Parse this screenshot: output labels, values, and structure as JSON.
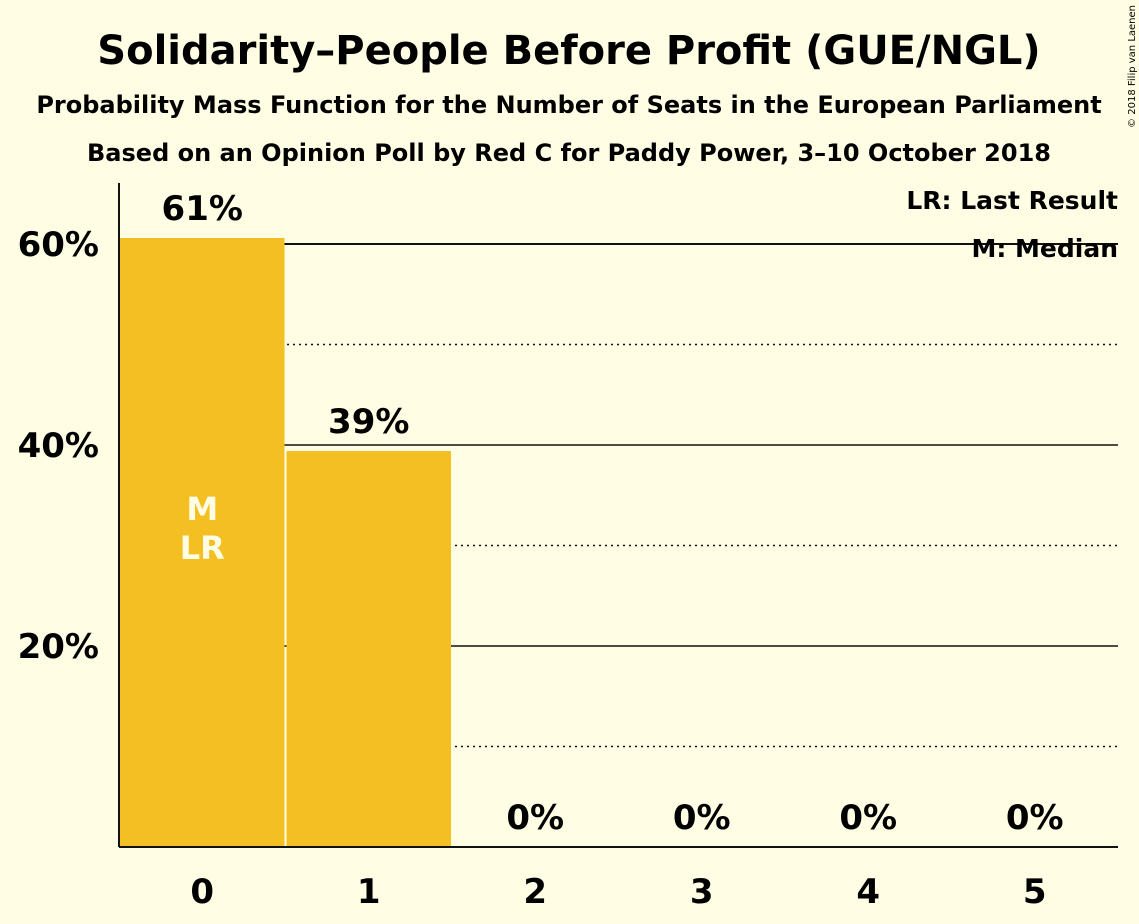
{
  "chart_data": {
    "type": "bar",
    "title": "Solidarity–People Before Profit (GUE/NGL)",
    "subtitle": "Probability Mass Function for the Number of Seats in the European Parliament",
    "subtitle2": "Based on an Opinion Poll by Red C for Paddy Power, 3–10 October 2018",
    "categories": [
      "0",
      "1",
      "2",
      "3",
      "4",
      "5"
    ],
    "values": [
      60.6,
      39.4,
      0,
      0,
      0,
      0
    ],
    "value_labels": [
      "61%",
      "39%",
      "0%",
      "0%",
      "0%",
      "0%"
    ],
    "yticks": [
      20,
      40,
      60
    ],
    "ytick_labels": [
      "20%",
      "40%",
      "60%"
    ],
    "ylim": [
      0,
      66
    ],
    "minor_gridlines": [
      10,
      30,
      50
    ],
    "median_line": 60,
    "bar_color": "#F4BF22",
    "markers": {
      "category": "0",
      "lines": [
        "M",
        "LR"
      ]
    },
    "legend": {
      "placement": "top-right",
      "items": [
        "LR: Last Result",
        "M: Median"
      ]
    },
    "copyright": "© 2018 Filip van Laenen"
  }
}
